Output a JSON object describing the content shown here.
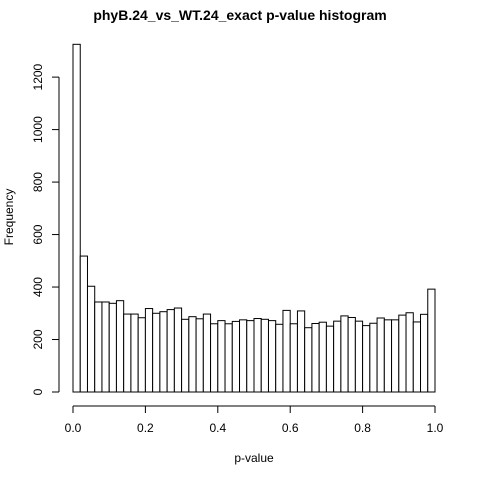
{
  "chart_data": {
    "type": "bar",
    "title": "phyB.24_vs_WT.24_exact p-value histogram",
    "xlabel": "p-value",
    "ylabel": "Frequency",
    "xlim": [
      0,
      1
    ],
    "ylim": [
      0,
      1330
    ],
    "x_ticks": [
      0.0,
      0.2,
      0.4,
      0.6,
      0.8,
      1.0
    ],
    "x_tick_labels": [
      "0.0",
      "0.2",
      "0.4",
      "0.6",
      "0.8",
      "1.0"
    ],
    "y_ticks": [
      0,
      200,
      400,
      600,
      800,
      1000,
      1200
    ],
    "y_tick_labels": [
      "0",
      "200",
      "400",
      "600",
      "800",
      "1000",
      "1200"
    ],
    "bin_width": 0.02,
    "bin_starts": [
      0.0,
      0.02,
      0.04,
      0.06,
      0.08,
      0.1,
      0.12,
      0.14,
      0.16,
      0.18,
      0.2,
      0.22,
      0.24,
      0.26,
      0.28,
      0.3,
      0.32,
      0.34,
      0.36,
      0.38,
      0.4,
      0.42,
      0.44,
      0.46,
      0.48,
      0.5,
      0.52,
      0.54,
      0.56,
      0.58,
      0.6,
      0.62,
      0.64,
      0.66,
      0.68,
      0.7,
      0.72,
      0.74,
      0.76,
      0.78,
      0.8,
      0.82,
      0.84,
      0.86,
      0.88,
      0.9,
      0.92,
      0.94,
      0.96,
      0.98
    ],
    "values": [
      1325,
      518,
      403,
      343,
      343,
      338,
      348,
      297,
      297,
      283,
      318,
      300,
      306,
      314,
      320,
      277,
      287,
      279,
      297,
      260,
      272,
      260,
      269,
      275,
      272,
      280,
      277,
      272,
      258,
      311,
      260,
      309,
      245,
      261,
      266,
      251,
      270,
      290,
      284,
      270,
      253,
      262,
      282,
      275,
      275,
      293,
      302,
      267,
      296,
      392
    ],
    "grid": false,
    "legend": "none"
  }
}
